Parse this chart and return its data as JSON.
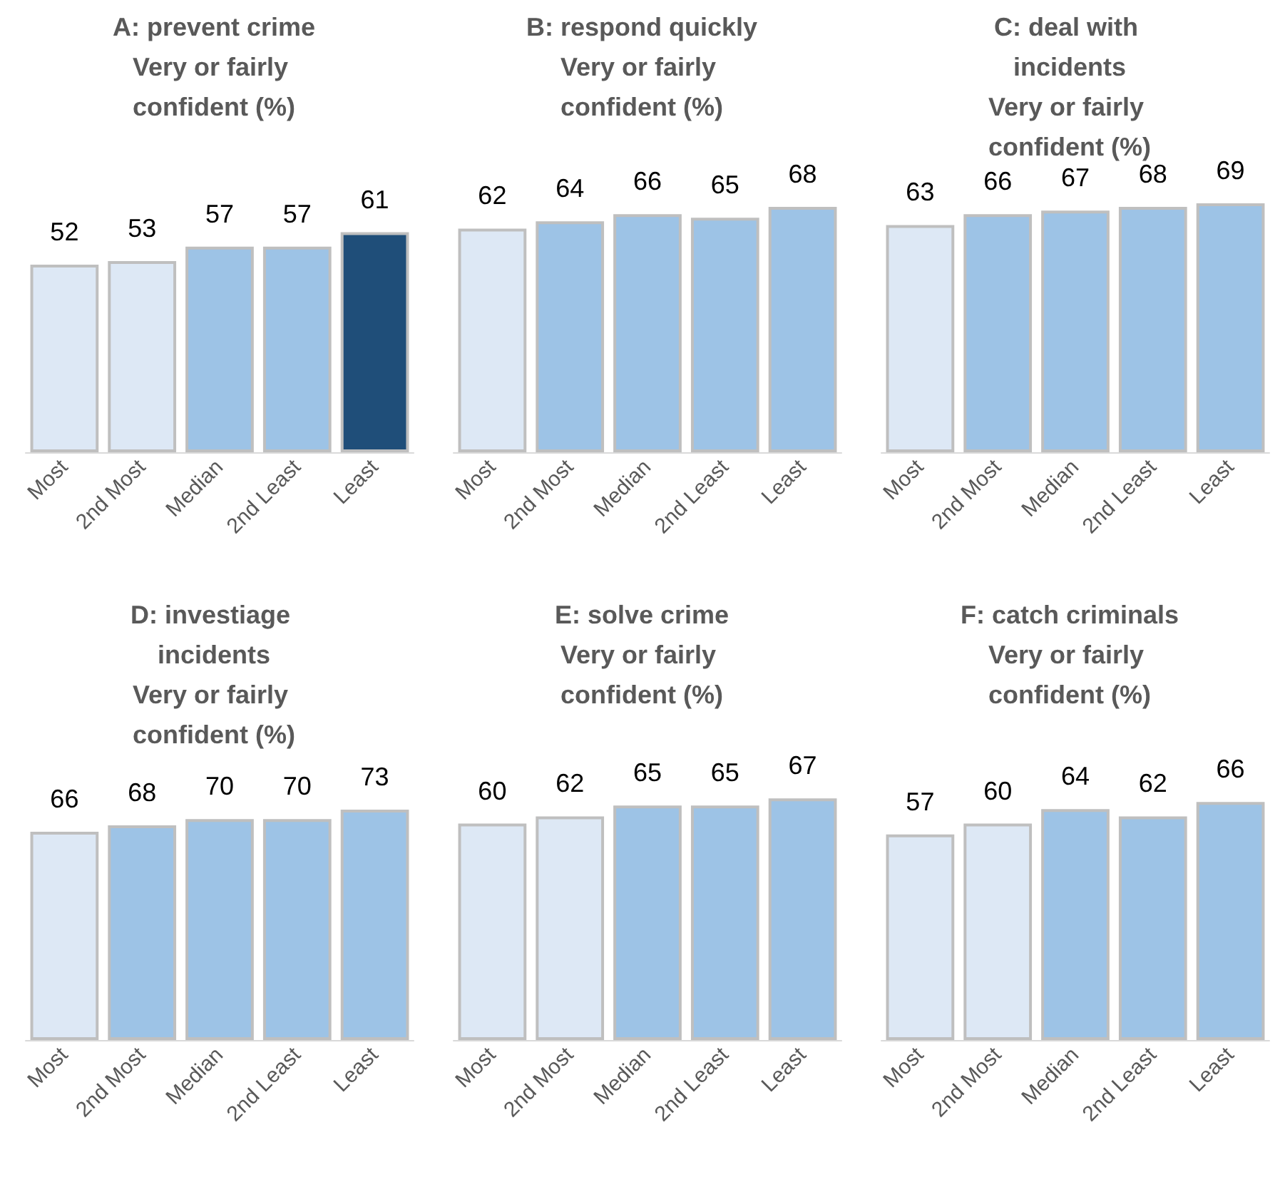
{
  "chart_data": [
    {
      "type": "bar",
      "title": "A: prevent crime",
      "subtitle": "Very or fairly confident (%)",
      "categories": [
        "Most",
        "2nd Most",
        "Median",
        "2nd Least",
        "Least"
      ],
      "values": [
        52,
        53,
        57,
        57,
        61
      ],
      "colors": [
        "#dde8f5",
        "#dde8f5",
        "#9dc3e6",
        "#9dc3e6",
        "#1f4e79"
      ],
      "data_labels": true
    },
    {
      "type": "bar",
      "title": "B: respond quickly",
      "subtitle": "Very or fairly confident (%)",
      "categories": [
        "Most",
        "2nd Most",
        "Median",
        "2nd Least",
        "Least"
      ],
      "values": [
        62,
        64,
        66,
        65,
        68
      ],
      "colors": [
        "#dde8f5",
        "#9dc3e6",
        "#9dc3e6",
        "#9dc3e6",
        "#9dc3e6"
      ],
      "data_labels": true
    },
    {
      "type": "bar",
      "title": "C: deal with incidents",
      "subtitle": "Very or fairly confident (%)",
      "categories": [
        "Most",
        "2nd Most",
        "Median",
        "2nd Least",
        "Least"
      ],
      "values": [
        63,
        66,
        67,
        68,
        69
      ],
      "colors": [
        "#dde8f5",
        "#9dc3e6",
        "#9dc3e6",
        "#9dc3e6",
        "#9dc3e6"
      ],
      "data_labels": true
    },
    {
      "type": "bar",
      "title": "D: investiage incidents",
      "subtitle": "Very or fairly confident (%)",
      "categories": [
        "Most",
        "2nd Most",
        "Median",
        "2nd Least",
        "Least"
      ],
      "values": [
        66,
        68,
        70,
        70,
        73
      ],
      "colors": [
        "#dde8f5",
        "#9dc3e6",
        "#9dc3e6",
        "#9dc3e6",
        "#9dc3e6"
      ],
      "data_labels": true
    },
    {
      "type": "bar",
      "title": "E: solve crime",
      "subtitle": "Very or fairly confident (%)",
      "categories": [
        "Most",
        "2nd Most",
        "Median",
        "2nd Least",
        "Least"
      ],
      "values": [
        60,
        62,
        65,
        65,
        67
      ],
      "colors": [
        "#dde8f5",
        "#dde8f5",
        "#9dc3e6",
        "#9dc3e6",
        "#9dc3e6"
      ],
      "data_labels": true
    },
    {
      "type": "bar",
      "title": "F: catch criminals",
      "subtitle": "Very or fairly confident (%)",
      "categories": [
        "Most",
        "2nd Most",
        "Median",
        "2nd Least",
        "Least"
      ],
      "values": [
        57,
        60,
        64,
        62,
        66
      ],
      "colors": [
        "#dde8f5",
        "#dde8f5",
        "#9dc3e6",
        "#9dc3e6",
        "#9dc3e6"
      ],
      "data_labels": true
    }
  ]
}
